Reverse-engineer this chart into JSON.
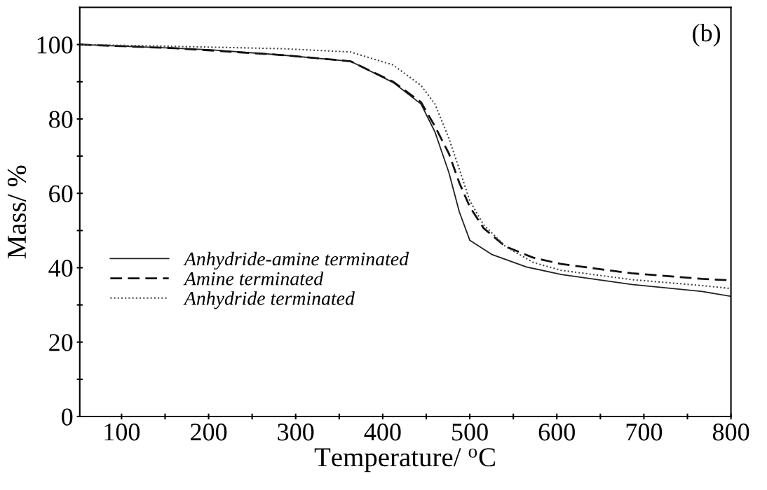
{
  "chart_data": {
    "type": "line",
    "xlabel": "Temperature/ $^{o}$C",
    "ylabel": "Mass/ %",
    "annotations": [
      "(b)"
    ],
    "xlim": [
      52,
      800
    ],
    "ylim": [
      0,
      110
    ],
    "xticks": [
      {
        "value": 100,
        "label": "100"
      },
      {
        "value": 150,
        "label": null
      },
      {
        "value": 200,
        "label": "200"
      },
      {
        "value": 250,
        "label": null
      },
      {
        "value": 300,
        "label": "300"
      },
      {
        "value": 350,
        "label": null
      },
      {
        "value": 400,
        "label": "400"
      },
      {
        "value": 450,
        "label": null
      },
      {
        "value": 500,
        "label": "500"
      },
      {
        "value": 550,
        "label": null
      },
      {
        "value": 600,
        "label": "600"
      },
      {
        "value": 650,
        "label": null
      },
      {
        "value": 700,
        "label": "700"
      },
      {
        "value": 750,
        "label": null
      },
      {
        "value": 800,
        "label": "800"
      }
    ],
    "yticks": [
      0,
      {
        "value": 10,
        "label": null
      },
      20,
      {
        "value": 30,
        "label": null
      },
      40,
      {
        "value": 50,
        "label": null
      },
      60,
      {
        "value": 70,
        "label": null
      },
      80,
      {
        "value": 90,
        "label": null
      },
      100
    ],
    "grid": false,
    "legend": "lower left",
    "series": [
      {
        "name": "Anhydride-amine terminated",
        "color": "#222222",
        "line_style": "solid",
        "x": [
          52,
          162,
          202,
          283,
          363,
          412,
          444,
          460,
          476,
          488,
          500,
          525,
          565,
          605,
          686,
          767,
          800
        ],
        "values": [
          100,
          99,
          98.6,
          97.2,
          95.5,
          89.8,
          84,
          76.5,
          65.6,
          55,
          47.4,
          43.6,
          40.2,
          38.2,
          35.5,
          33.6,
          32.3
        ]
      },
      {
        "name": "Amine terminated",
        "color": "#111111",
        "line_style": "dashed",
        "x": [
          52,
          162,
          283,
          363,
          412,
          444,
          460,
          476,
          488,
          500,
          516,
          541,
          573,
          605,
          686,
          767,
          800
        ],
        "values": [
          100,
          99,
          97.2,
          95.5,
          90,
          84.5,
          78,
          70.7,
          62.8,
          56.4,
          50.6,
          45.7,
          42.7,
          41,
          38.5,
          37,
          36.6
        ]
      },
      {
        "name": "Anhydride terminated",
        "color": "#444444",
        "line_style": "dotted",
        "x": [
          52,
          162,
          283,
          363,
          412,
          444,
          460,
          476,
          488,
          500,
          516,
          541,
          573,
          605,
          686,
          767,
          800
        ],
        "values": [
          100,
          99.5,
          98.9,
          98,
          94.5,
          89,
          84,
          74.8,
          66.5,
          58,
          51.5,
          45.7,
          41.4,
          39.3,
          36.8,
          35.2,
          34.4
        ]
      }
    ]
  }
}
